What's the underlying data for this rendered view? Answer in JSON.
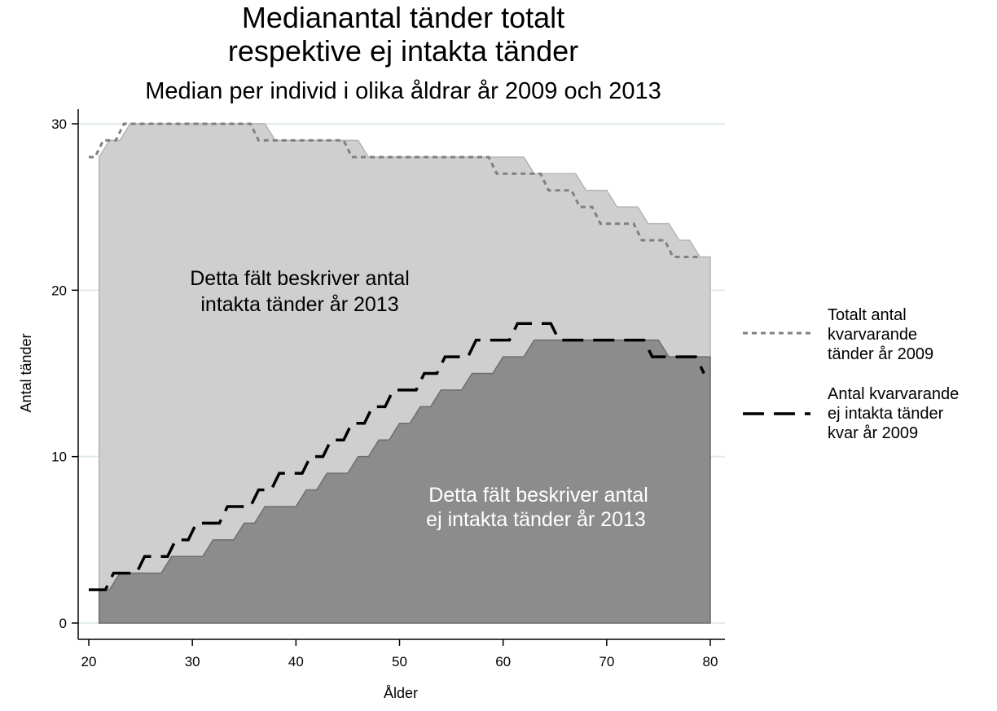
{
  "chart_data": {
    "type": "area",
    "title": [
      "Medianantal tänder totalt",
      "respektive ej intakta tänder"
    ],
    "subtitle": "Median per individ i olika åldrar år 2009 och 2013",
    "xlabel": "Ålder",
    "ylabel": "Antal tänder",
    "xlim": [
      20,
      80
    ],
    "ylim": [
      0,
      30
    ],
    "x_ticks": [
      20,
      30,
      40,
      50,
      60,
      70,
      80
    ],
    "y_ticks": [
      0,
      10,
      20,
      30
    ],
    "grid": "horizontal",
    "legend_position": "right",
    "areas": [
      {
        "label": [
          "Detta fält beskriver antal",
          "intakta tänder år 2013"
        ],
        "color": "#cfcfcf",
        "x": [
          21,
          22,
          23,
          24,
          25,
          26,
          27,
          28,
          29,
          30,
          31,
          32,
          33,
          34,
          35,
          36,
          37,
          38,
          39,
          40,
          41,
          42,
          43,
          44,
          45,
          46,
          47,
          48,
          49,
          50,
          51,
          52,
          53,
          54,
          55,
          56,
          57,
          58,
          59,
          60,
          61,
          62,
          63,
          64,
          65,
          66,
          67,
          68,
          69,
          70,
          71,
          72,
          73,
          74,
          75,
          76,
          77,
          78,
          79,
          80
        ],
        "y": [
          28,
          29,
          29,
          30,
          30,
          30,
          30,
          30,
          30,
          30,
          30,
          30,
          30,
          30,
          30,
          30,
          30,
          29,
          29,
          29,
          29,
          29,
          29,
          29,
          29,
          29,
          28,
          28,
          28,
          28,
          28,
          28,
          28,
          28,
          28,
          28,
          28,
          28,
          28,
          28,
          28,
          28,
          27,
          27,
          27,
          27,
          27,
          26,
          26,
          26,
          25,
          25,
          25,
          24,
          24,
          24,
          23,
          23,
          22,
          22
        ]
      },
      {
        "label": [
          "Detta fält beskriver antal",
          "ej intakta tänder år 2013"
        ],
        "color": "#8c8c8c",
        "x": [
          21,
          22,
          23,
          24,
          25,
          26,
          27,
          28,
          29,
          30,
          31,
          32,
          33,
          34,
          35,
          36,
          37,
          38,
          39,
          40,
          41,
          42,
          43,
          44,
          45,
          46,
          47,
          48,
          49,
          50,
          51,
          52,
          53,
          54,
          55,
          56,
          57,
          58,
          59,
          60,
          61,
          62,
          63,
          64,
          65,
          66,
          67,
          68,
          69,
          70,
          71,
          72,
          73,
          74,
          75,
          76,
          77,
          78,
          79,
          80
        ],
        "y": [
          2,
          2,
          3,
          3,
          3,
          3,
          3,
          4,
          4,
          4,
          4,
          5,
          5,
          5,
          6,
          6,
          7,
          7,
          7,
          7,
          8,
          8,
          9,
          9,
          9,
          10,
          10,
          11,
          11,
          12,
          12,
          13,
          13,
          14,
          14,
          14,
          15,
          15,
          15,
          16,
          16,
          16,
          17,
          17,
          17,
          17,
          17,
          17,
          17,
          17,
          17,
          17,
          17,
          17,
          17,
          16,
          16,
          16,
          16,
          16
        ]
      }
    ],
    "series": [
      {
        "name": [
          "Totalt antal",
          "kvarvarande",
          "tänder år 2009"
        ],
        "style": "short-dash",
        "color": "#808080",
        "x": [
          20,
          21,
          22,
          23,
          24,
          25,
          26,
          27,
          28,
          29,
          30,
          31,
          32,
          33,
          34,
          35,
          36,
          37,
          38,
          39,
          40,
          41,
          42,
          43,
          44,
          45,
          46,
          47,
          48,
          49,
          50,
          51,
          52,
          53,
          54,
          55,
          56,
          57,
          58,
          59,
          60,
          61,
          62,
          63,
          64,
          65,
          66,
          67,
          68,
          69,
          70,
          71,
          72,
          73,
          74,
          75,
          76,
          77,
          78,
          79
        ],
        "y": [
          28,
          29,
          29,
          30,
          30,
          30,
          30,
          30,
          30,
          30,
          30,
          30,
          30,
          30,
          30,
          30,
          29,
          29,
          29,
          29,
          29,
          29,
          29,
          29,
          29,
          28,
          28,
          28,
          28,
          28,
          28,
          28,
          28,
          28,
          28,
          28,
          28,
          28,
          28,
          27,
          27,
          27,
          27,
          27,
          26,
          26,
          26,
          25,
          25,
          24,
          24,
          24,
          24,
          23,
          23,
          23,
          22,
          22,
          22,
          22
        ]
      },
      {
        "name": [
          "Antal kvarvarande",
          "ej intakta tänder",
          "kvar år 2009"
        ],
        "style": "long-dash",
        "color": "#000000",
        "x": [
          20,
          21,
          22,
          23,
          24,
          25,
          26,
          27,
          28,
          29,
          30,
          31,
          32,
          33,
          34,
          35,
          36,
          37,
          38,
          39,
          40,
          41,
          42,
          43,
          44,
          45,
          46,
          47,
          48,
          49,
          50,
          51,
          52,
          53,
          54,
          55,
          56,
          57,
          58,
          59,
          60,
          61,
          62,
          63,
          64,
          65,
          66,
          67,
          68,
          69,
          70,
          71,
          72,
          73,
          74,
          75,
          76,
          77,
          78,
          79
        ],
        "y": [
          2,
          2,
          3,
          3,
          3,
          4,
          4,
          4,
          5,
          5,
          6,
          6,
          6,
          7,
          7,
          7,
          8,
          8,
          9,
          9,
          9,
          10,
          10,
          11,
          11,
          12,
          12,
          13,
          13,
          14,
          14,
          14,
          15,
          15,
          16,
          16,
          16,
          17,
          17,
          17,
          17,
          18,
          18,
          18,
          18,
          17,
          17,
          17,
          17,
          17,
          17,
          17,
          17,
          17,
          16,
          16,
          16,
          16,
          16,
          15
        ]
      }
    ]
  }
}
